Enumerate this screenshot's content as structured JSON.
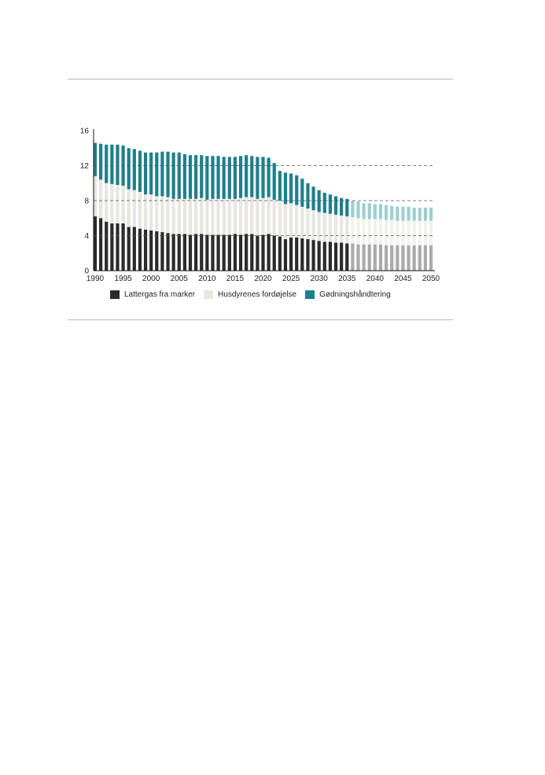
{
  "chart_data": {
    "type": "bar",
    "stacked": true,
    "title": "",
    "xlabel": "",
    "ylabel": "",
    "ylim": [
      0,
      16
    ],
    "yticks": [
      "0",
      "4",
      "8",
      "12",
      "16"
    ],
    "xticks": [
      "1990",
      "1995",
      "2000",
      "2005",
      "2010",
      "2015",
      "2020",
      "2025",
      "2030",
      "2035",
      "2040",
      "2045",
      "2050"
    ],
    "projection_start_year": 2036,
    "reference_lines": [
      4,
      8,
      12
    ],
    "x": [
      1990,
      1991,
      1992,
      1993,
      1994,
      1995,
      1996,
      1997,
      1998,
      1999,
      2000,
      2001,
      2002,
      2003,
      2004,
      2005,
      2006,
      2007,
      2008,
      2009,
      2010,
      2011,
      2012,
      2013,
      2014,
      2015,
      2016,
      2017,
      2018,
      2019,
      2020,
      2021,
      2022,
      2023,
      2024,
      2025,
      2026,
      2027,
      2028,
      2029,
      2030,
      2031,
      2032,
      2033,
      2034,
      2035,
      2036,
      2037,
      2038,
      2039,
      2040,
      2041,
      2042,
      2043,
      2044,
      2045,
      2046,
      2047,
      2048,
      2049,
      2050
    ],
    "series": [
      {
        "name": "Lattergas fra marker",
        "color": "#2b2b2b",
        "projection_color": "#aaaaaa",
        "values": [
          6.2,
          6.0,
          5.6,
          5.4,
          5.4,
          5.4,
          5.0,
          5.0,
          4.8,
          4.7,
          4.6,
          4.5,
          4.4,
          4.3,
          4.2,
          4.2,
          4.2,
          4.1,
          4.2,
          4.2,
          4.1,
          4.1,
          4.1,
          4.1,
          4.1,
          4.2,
          4.1,
          4.2,
          4.2,
          4.0,
          4.1,
          4.2,
          4.0,
          3.9,
          3.6,
          3.8,
          3.8,
          3.7,
          3.6,
          3.5,
          3.4,
          3.3,
          3.3,
          3.2,
          3.2,
          3.1,
          3.1,
          3.0,
          3.0,
          3.0,
          3.0,
          3.0,
          2.9,
          2.9,
          2.9,
          2.9,
          2.9,
          2.9,
          2.9,
          2.9,
          2.9
        ]
      },
      {
        "name": "Husdyrenes fordøjelse",
        "color": "#e8e6e1",
        "projection_color": "#f2f1ed",
        "values": [
          4.6,
          4.4,
          4.4,
          4.5,
          4.4,
          4.3,
          4.3,
          4.2,
          4.2,
          4.0,
          4.1,
          4.0,
          4.1,
          4.1,
          4.0,
          4.0,
          4.0,
          4.1,
          4.0,
          4.1,
          4.0,
          4.1,
          4.1,
          4.1,
          4.1,
          4.0,
          4.2,
          4.2,
          4.2,
          4.2,
          4.2,
          4.2,
          4.1,
          4.1,
          4.0,
          3.9,
          3.7,
          3.6,
          3.5,
          3.4,
          3.3,
          3.3,
          3.2,
          3.2,
          3.1,
          3.1,
          3.0,
          3.0,
          2.9,
          2.9,
          2.9,
          2.9,
          2.9,
          2.9,
          2.8,
          2.8,
          2.8,
          2.8,
          2.8,
          2.8,
          2.8
        ]
      },
      {
        "name": "Gødningshåndtering",
        "color": "#1f7f8c",
        "projection_color": "#9dcfd0",
        "values": [
          3.8,
          4.1,
          4.4,
          4.5,
          4.6,
          4.6,
          4.7,
          4.7,
          4.7,
          4.8,
          4.8,
          5.0,
          5.1,
          5.2,
          5.3,
          5.3,
          5.1,
          5.0,
          5.0,
          4.9,
          5.0,
          4.9,
          4.9,
          4.8,
          4.8,
          4.8,
          4.8,
          4.8,
          4.7,
          4.8,
          4.7,
          4.5,
          4.2,
          3.4,
          3.6,
          3.4,
          3.4,
          3.2,
          2.9,
          2.7,
          2.5,
          2.3,
          2.2,
          2.1,
          2.0,
          2.0,
          1.9,
          1.9,
          1.8,
          1.8,
          1.7,
          1.7,
          1.7,
          1.6,
          1.6,
          1.6,
          1.6,
          1.5,
          1.5,
          1.5,
          1.5
        ]
      }
    ],
    "legend_position": "bottom-left",
    "grid": false
  }
}
